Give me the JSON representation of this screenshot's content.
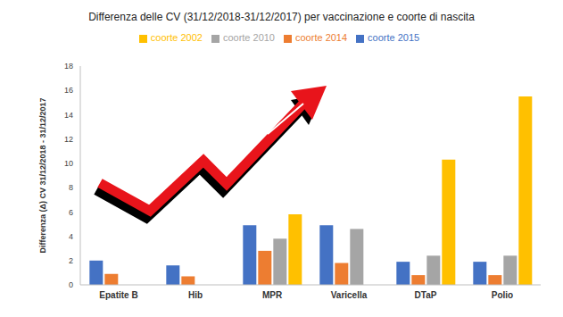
{
  "chart_data": {
    "type": "bar",
    "title": "Differenza delle CV (31/12/2018-31/12/2017) per vaccinazione e coorte di nascita",
    "y_label": "Differenza (Δ)  CV 31/12/2018 - 31/12/2017",
    "categories": [
      "Epatite B",
      "Hib",
      "MPR",
      "Varicella",
      "DTaP",
      "Polio"
    ],
    "series": [
      {
        "name": "coorte 2015",
        "color": "#4472c4",
        "values": [
          2.0,
          1.6,
          4.9,
          4.9,
          1.9,
          1.9
        ]
      },
      {
        "name": "coorte 2014",
        "color": "#ed7d31",
        "values": [
          0.9,
          0.7,
          2.8,
          1.8,
          0.8,
          0.8
        ]
      },
      {
        "name": "coorte 2010",
        "color": "#a5a5a5",
        "values": [
          null,
          null,
          3.8,
          4.6,
          2.4,
          2.4
        ]
      },
      {
        "name": "coorte 2002",
        "color": "#ffc000",
        "values": [
          null,
          null,
          5.8,
          null,
          10.3,
          15.5
        ]
      }
    ],
    "ylim": [
      0,
      18
    ],
    "yticks": [
      0,
      2,
      4,
      6,
      8,
      10,
      12,
      14,
      16,
      18
    ],
    "grid": false,
    "legend": "top"
  }
}
